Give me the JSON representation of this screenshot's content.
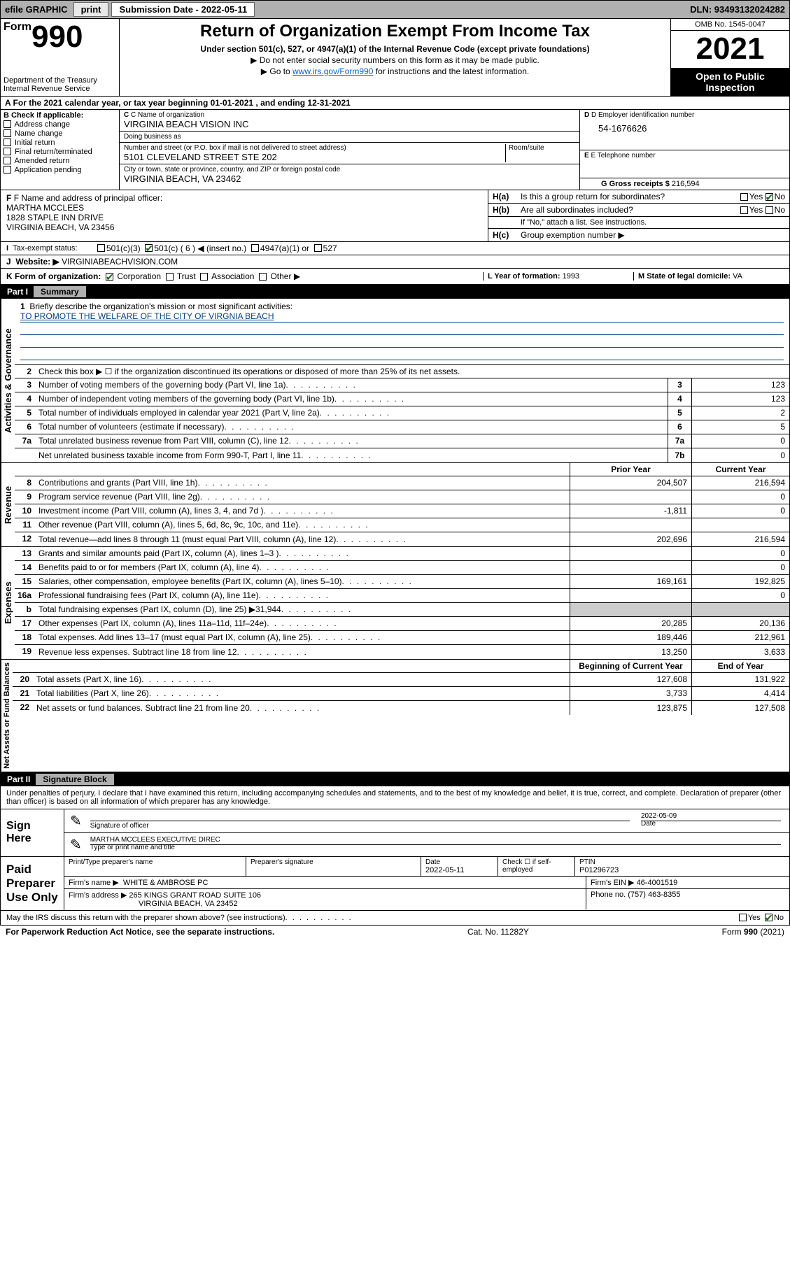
{
  "topbar": {
    "efile": "efile GRAPHIC",
    "print": "print",
    "sub_label": "Submission Date - 2022-05-11",
    "dln": "DLN: 93493132024282"
  },
  "header": {
    "form_prefix": "Form",
    "form_num": "990",
    "title": "Return of Organization Exempt From Income Tax",
    "subtitle": "Under section 501(c), 527, or 4947(a)(1) of the Internal Revenue Code (except private foundations)",
    "inst1": "▶ Do not enter social security numbers on this form as it may be made public.",
    "inst2_pre": "▶ Go to ",
    "inst2_link": "www.irs.gov/Form990",
    "inst2_post": " for instructions and the latest information.",
    "dept": "Department of the Treasury\nInternal Revenue Service",
    "omb": "OMB No. 1545-0047",
    "year": "2021",
    "inspection": "Open to Public Inspection"
  },
  "period": {
    "text_pre": "A For the 2021 calendar year, or tax year beginning ",
    "begin": "01-01-2021",
    "mid": " , and ending ",
    "end": "12-31-2021"
  },
  "checkB": {
    "label": "B Check if applicable:",
    "items": [
      "Address change",
      "Name change",
      "Initial return",
      "Final return/terminated",
      "Amended return",
      "Application pending"
    ]
  },
  "boxC": {
    "name_label": "C Name of organization",
    "name": "VIRGINIA BEACH VISION INC",
    "dba_label": "Doing business as",
    "dba": "",
    "street_label": "Number and street (or P.O. box if mail is not delivered to street address)",
    "room_label": "Room/suite",
    "street": "5101 CLEVELAND STREET STE 202",
    "city_label": "City or town, state or province, country, and ZIP or foreign postal code",
    "city": "VIRGINIA BEACH, VA  23462"
  },
  "boxD": {
    "label": "D Employer identification number",
    "value": "54-1676626"
  },
  "boxE": {
    "label": "E Telephone number",
    "value": ""
  },
  "boxG": {
    "label": "G Gross receipts $",
    "value": "216,594"
  },
  "boxF": {
    "label": "F Name and address of principal officer:",
    "name": "MARTHA MCCLEES",
    "addr1": "1828 STAPLE INN DRIVE",
    "addr2": "VIRGINIA BEACH, VA  23456"
  },
  "boxH": {
    "a_label": "Is this a group return for subordinates?",
    "a_prefix": "H(a)",
    "b_label": "Are all subordinates included?",
    "b_prefix": "H(b)",
    "b_note": "If \"No,\" attach a list. See instructions.",
    "c_label": "Group exemption number ▶",
    "c_prefix": "H(c)",
    "yes": "Yes",
    "no": "No",
    "a_answer": "No"
  },
  "boxI": {
    "label": "Tax-exempt status:",
    "opt1": "501(c)(3)",
    "opt2": "501(c) ( 6 ) ◀ (insert no.)",
    "opt3": "4947(a)(1) or",
    "opt4": "527",
    "checked": 2
  },
  "boxJ": {
    "label": "Website: ▶",
    "value": "VIRGINIABEACHVISION.COM"
  },
  "boxK": {
    "label": "K Form of organization:",
    "opts": [
      "Corporation",
      "Trust",
      "Association",
      "Other ▶"
    ],
    "checked": 0
  },
  "boxL": {
    "label": "L Year of formation:",
    "value": "1993"
  },
  "boxM": {
    "label": "M State of legal domicile:",
    "value": "VA"
  },
  "part1": {
    "header_num": "Part I",
    "header_title": "Summary",
    "mission_label": "Briefly describe the organization's mission or most significant activities:",
    "mission": "TO PROMOTE THE WELFARE OF THE CITY OF VIRGNIA BEACH",
    "line2": "Check this box ▶ ☐  if the organization discontinued its operations or disposed of more than 25% of its net assets.",
    "sections": {
      "gov": "Activities & Governance",
      "rev": "Revenue",
      "exp": "Expenses",
      "net": "Net Assets or Fund Balances"
    },
    "col_prior": "Prior Year",
    "col_current": "Current Year",
    "col_boy": "Beginning of Current Year",
    "col_eoy": "End of Year",
    "lines_gov": [
      {
        "n": "3",
        "d": "Number of voting members of the governing body (Part VI, line 1a)",
        "box": "3",
        "v": "123"
      },
      {
        "n": "4",
        "d": "Number of independent voting members of the governing body (Part VI, line 1b)",
        "box": "4",
        "v": "123"
      },
      {
        "n": "5",
        "d": "Total number of individuals employed in calendar year 2021 (Part V, line 2a)",
        "box": "5",
        "v": "2"
      },
      {
        "n": "6",
        "d": "Total number of volunteers (estimate if necessary)",
        "box": "6",
        "v": "5"
      },
      {
        "n": "7a",
        "d": "Total unrelated business revenue from Part VIII, column (C), line 12",
        "box": "7a",
        "v": "0"
      },
      {
        "n": "",
        "d": "Net unrelated business taxable income from Form 990-T, Part I, line 11",
        "box": "7b",
        "v": "0"
      }
    ],
    "lines_rev": [
      {
        "n": "8",
        "d": "Contributions and grants (Part VIII, line 1h)",
        "p": "204,507",
        "c": "216,594"
      },
      {
        "n": "9",
        "d": "Program service revenue (Part VIII, line 2g)",
        "p": "",
        "c": "0"
      },
      {
        "n": "10",
        "d": "Investment income (Part VIII, column (A), lines 3, 4, and 7d )",
        "p": "-1,811",
        "c": "0"
      },
      {
        "n": "11",
        "d": "Other revenue (Part VIII, column (A), lines 5, 6d, 8c, 9c, 10c, and 11e)",
        "p": "",
        "c": ""
      },
      {
        "n": "12",
        "d": "Total revenue—add lines 8 through 11 (must equal Part VIII, column (A), line 12)",
        "p": "202,696",
        "c": "216,594"
      }
    ],
    "lines_exp": [
      {
        "n": "13",
        "d": "Grants and similar amounts paid (Part IX, column (A), lines 1–3 )",
        "p": "",
        "c": "0"
      },
      {
        "n": "14",
        "d": "Benefits paid to or for members (Part IX, column (A), line 4)",
        "p": "",
        "c": "0"
      },
      {
        "n": "15",
        "d": "Salaries, other compensation, employee benefits (Part IX, column (A), lines 5–10)",
        "p": "169,161",
        "c": "192,825"
      },
      {
        "n": "16a",
        "d": "Professional fundraising fees (Part IX, column (A), line 11e)",
        "p": "",
        "c": "0"
      },
      {
        "n": "b",
        "d": "Total fundraising expenses (Part IX, column (D), line 25) ▶31,944",
        "p": "shaded",
        "c": "shaded"
      },
      {
        "n": "17",
        "d": "Other expenses (Part IX, column (A), lines 11a–11d, 11f–24e)",
        "p": "20,285",
        "c": "20,136"
      },
      {
        "n": "18",
        "d": "Total expenses. Add lines 13–17 (must equal Part IX, column (A), line 25)",
        "p": "189,446",
        "c": "212,961"
      },
      {
        "n": "19",
        "d": "Revenue less expenses. Subtract line 18 from line 12",
        "p": "13,250",
        "c": "3,633"
      }
    ],
    "lines_net": [
      {
        "n": "20",
        "d": "Total assets (Part X, line 16)",
        "p": "127,608",
        "c": "131,922"
      },
      {
        "n": "21",
        "d": "Total liabilities (Part X, line 26)",
        "p": "3,733",
        "c": "4,414"
      },
      {
        "n": "22",
        "d": "Net assets or fund balances. Subtract line 21 from line 20",
        "p": "123,875",
        "c": "127,508"
      }
    ]
  },
  "part2": {
    "header_num": "Part II",
    "header_title": "Signature Block",
    "decl": "Under penalties of perjury, I declare that I have examined this return, including accompanying schedules and statements, and to the best of my knowledge and belief, it is true, correct, and complete. Declaration of preparer (other than officer) is based on all information of which preparer has any knowledge.",
    "sign_here": "Sign Here",
    "sig_officer": "Signature of officer",
    "sig_date_label": "Date",
    "sig_date": "2022-05-09",
    "officer_name": "MARTHA MCCLEES EXECUTIVE DIREC",
    "officer_name_label": "Type or print name and title",
    "paid_prep": "Paid Preparer Use Only",
    "prep_name_label": "Print/Type preparer's name",
    "prep_sig_label": "Preparer's signature",
    "prep_date_label": "Date",
    "prep_date": "2022-05-11",
    "prep_check_label": "Check ☐ if self-employed",
    "ptin_label": "PTIN",
    "ptin": "P01296723",
    "firm_name_label": "Firm's name    ▶",
    "firm_name": "WHITE & AMBROSE PC",
    "firm_ein_label": "Firm's EIN ▶",
    "firm_ein": "46-4001519",
    "firm_addr_label": "Firm's address ▶",
    "firm_addr1": "265 KINGS GRANT ROAD SUITE 106",
    "firm_addr2": "VIRGINIA BEACH, VA  23452",
    "phone_label": "Phone no.",
    "phone": "(757) 463-8355",
    "discuss": "May the IRS discuss this return with the preparer shown above? (see instructions)",
    "discuss_answer": "No"
  },
  "footer": {
    "left": "For Paperwork Reduction Act Notice, see the separate instructions.",
    "mid": "Cat. No. 11282Y",
    "right": "Form 990 (2021)"
  },
  "colors": {
    "link": "#0000cc",
    "check": "#1a6b1a",
    "shade": "#cccccc",
    "topbar": "#b0b0b0"
  }
}
